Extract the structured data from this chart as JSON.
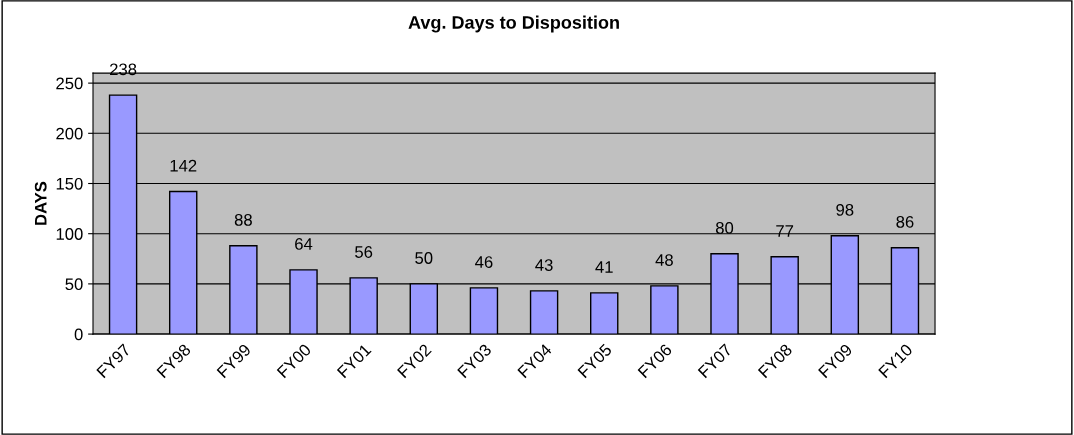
{
  "chart_data": {
    "type": "bar",
    "title": "Avg. Days to Disposition",
    "ylabel": "DAYS",
    "categories": [
      "FY97",
      "FY98",
      "FY99",
      "FY00",
      "FY01",
      "FY02",
      "FY03",
      "FY04",
      "FY05",
      "FY06",
      "FY07",
      "FY08",
      "FY09",
      "FY10"
    ],
    "values": [
      238,
      142,
      88,
      64,
      56,
      50,
      46,
      43,
      41,
      48,
      80,
      77,
      98,
      86
    ],
    "color": "#9999ff",
    "ylim": [
      0,
      260
    ],
    "yticks": [
      0,
      50,
      100,
      150,
      200,
      250
    ],
    "grid": "y",
    "data_labels": true,
    "legend": false
  }
}
